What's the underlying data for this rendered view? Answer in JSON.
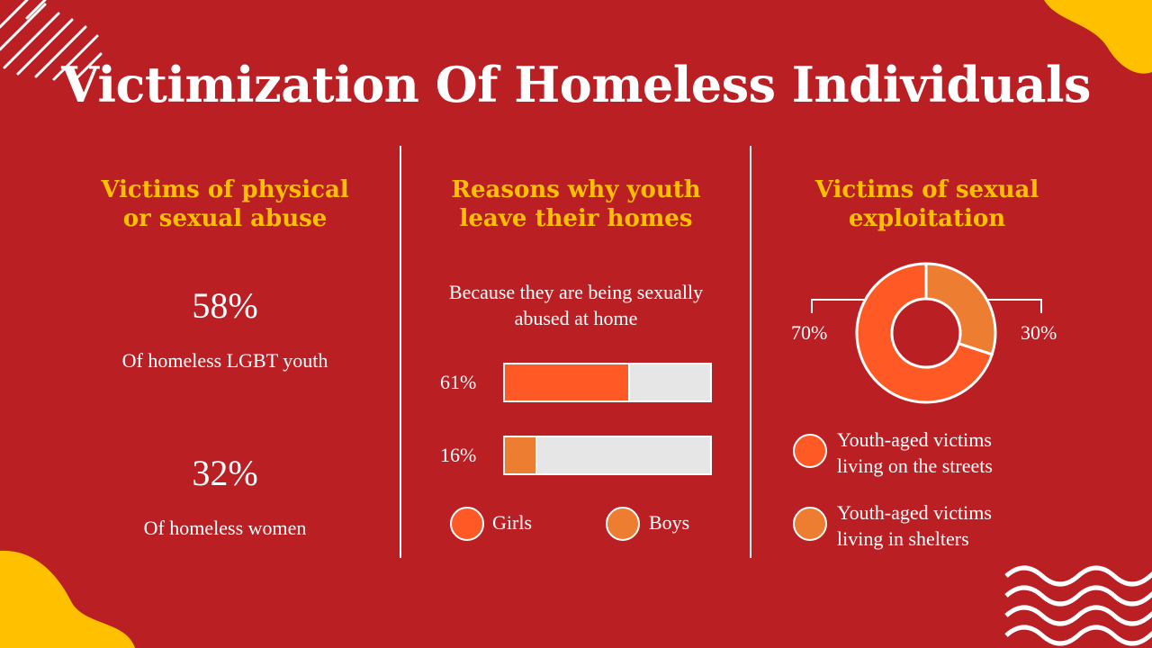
{
  "title": "Victimization Of Homeless Individuals",
  "colors": {
    "background": "#BA1F24",
    "accent": "#FFC000",
    "girls": "#FF5A26",
    "boys": "#ED7D31",
    "track": "#E6E6E6"
  },
  "left": {
    "heading_line1": "Victims of physical",
    "heading_line2": "or sexual abuse",
    "stat1": {
      "value": "58%",
      "label": "Of homeless LGBT youth"
    },
    "stat2": {
      "value": "32%",
      "label": "Of homeless women"
    }
  },
  "middle": {
    "heading_line1": "Reasons why youth",
    "heading_line2": "leave their homes",
    "subtitle_line1": "Because they are being sexually",
    "subtitle_line2": "abused at home",
    "legend": [
      "Girls",
      "Boys"
    ]
  },
  "right": {
    "heading_line1": "Victims of sexual",
    "heading_line2": "exploitation",
    "legend": [
      {
        "line1": "Youth-aged victims",
        "line2": "living on the streets"
      },
      {
        "line1": "Youth-aged victims",
        "line2": "living in shelters"
      }
    ]
  },
  "chart_data": [
    {
      "type": "bar",
      "orientation": "horizontal",
      "categories": [
        "Girls",
        "Boys"
      ],
      "values": [
        61,
        16
      ],
      "labels": [
        "61%",
        "16%"
      ],
      "xlim": [
        0,
        100
      ]
    },
    {
      "type": "pie",
      "donut": true,
      "categories": [
        "Youth-aged victims living on the streets",
        "Youth-aged victims living in shelters"
      ],
      "values": [
        70,
        30
      ],
      "labels": [
        "70%",
        "30%"
      ]
    }
  ]
}
